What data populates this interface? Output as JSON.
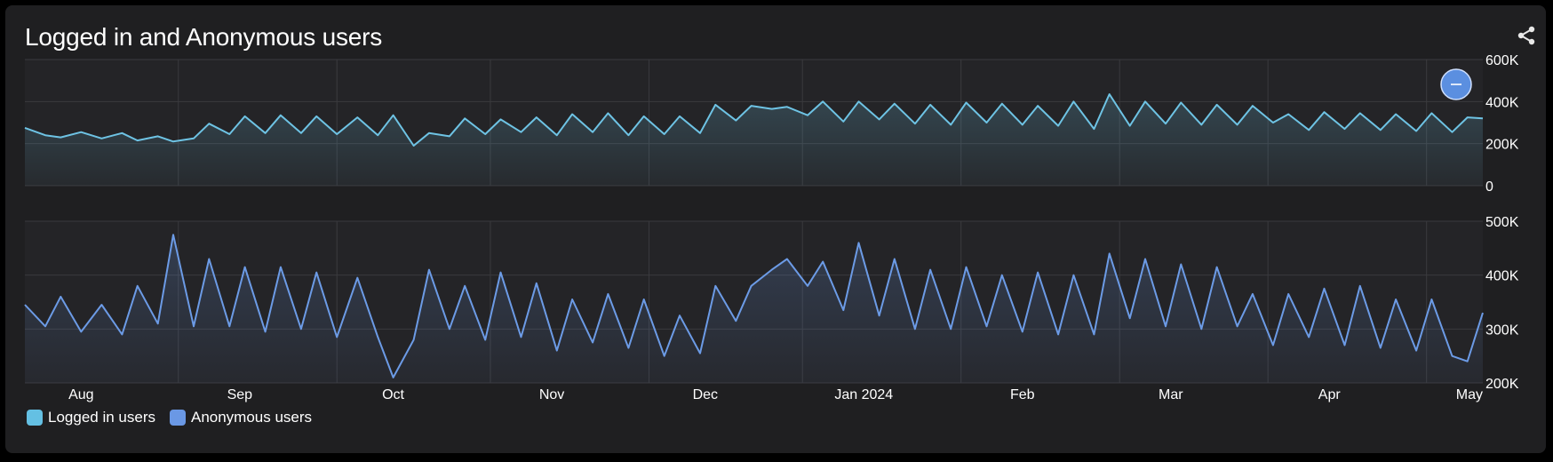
{
  "header": {
    "title": "Logged in and Anonymous users"
  },
  "icons": {
    "share": "share-icon",
    "reset_zoom": "minus-icon"
  },
  "colors": {
    "logged_in": "#6ec3e4",
    "anonymous": "#6c9be6",
    "background": "#1f1f21",
    "plot_bg": "#242427",
    "grid": "#3a3a3e"
  },
  "legend": [
    {
      "label": "Logged in users",
      "color": "#64c0e3"
    },
    {
      "label": "Anonymous users",
      "color": "#6a98e5"
    }
  ],
  "chart_data": [
    {
      "type": "area",
      "series_name": "Logged in users",
      "x_range": [
        "2023-07-21",
        "2024-05-01"
      ],
      "ylim": [
        0,
        600000
      ],
      "y_ticks": [
        "0",
        "200K",
        "400K",
        "600K"
      ],
      "x": [
        "2023-07-21",
        "2023-07-25",
        "2023-07-28",
        "2023-08-01",
        "2023-08-05",
        "2023-08-09",
        "2023-08-12",
        "2023-08-16",
        "2023-08-19",
        "2023-08-23",
        "2023-08-26",
        "2023-08-30",
        "2023-09-02",
        "2023-09-06",
        "2023-09-09",
        "2023-09-13",
        "2023-09-16",
        "2023-09-20",
        "2023-09-24",
        "2023-09-28",
        "2023-10-01",
        "2023-10-05",
        "2023-10-08",
        "2023-10-12",
        "2023-10-15",
        "2023-10-19",
        "2023-10-22",
        "2023-10-26",
        "2023-10-29",
        "2023-11-02",
        "2023-11-05",
        "2023-11-09",
        "2023-11-12",
        "2023-11-16",
        "2023-11-19",
        "2023-11-23",
        "2023-11-26",
        "2023-11-30",
        "2023-12-03",
        "2023-12-07",
        "2023-12-10",
        "2023-12-14",
        "2023-12-17",
        "2023-12-21",
        "2023-12-24",
        "2023-12-28",
        "2023-12-31",
        "2024-01-04",
        "2024-01-07",
        "2024-01-11",
        "2024-01-14",
        "2024-01-18",
        "2024-01-21",
        "2024-01-25",
        "2024-01-28",
        "2024-02-01",
        "2024-02-04",
        "2024-02-08",
        "2024-02-11",
        "2024-02-15",
        "2024-02-18",
        "2024-02-22",
        "2024-02-25",
        "2024-02-29",
        "2024-03-03",
        "2024-03-07",
        "2024-03-10",
        "2024-03-14",
        "2024-03-17",
        "2024-03-21",
        "2024-03-24",
        "2024-03-28",
        "2024-03-31",
        "2024-04-04",
        "2024-04-07",
        "2024-04-11",
        "2024-04-14",
        "2024-04-18",
        "2024-04-21",
        "2024-04-25",
        "2024-04-28",
        "2024-05-01"
      ],
      "values": [
        275000,
        240000,
        230000,
        255000,
        225000,
        250000,
        215000,
        235000,
        210000,
        225000,
        295000,
        245000,
        330000,
        250000,
        335000,
        250000,
        330000,
        245000,
        325000,
        240000,
        335000,
        190000,
        250000,
        235000,
        320000,
        245000,
        315000,
        255000,
        325000,
        240000,
        340000,
        255000,
        345000,
        240000,
        330000,
        245000,
        330000,
        250000,
        385000,
        310000,
        380000,
        365000,
        375000,
        335000,
        400000,
        305000,
        400000,
        315000,
        390000,
        295000,
        385000,
        290000,
        395000,
        300000,
        390000,
        290000,
        380000,
        285000,
        400000,
        270000,
        435000,
        285000,
        400000,
        295000,
        395000,
        290000,
        385000,
        290000,
        380000,
        300000,
        340000,
        265000,
        350000,
        270000,
        345000,
        265000,
        340000,
        260000,
        345000,
        255000,
        325000,
        320000
      ]
    },
    {
      "type": "area",
      "series_name": "Anonymous users",
      "x_range": [
        "2023-07-21",
        "2024-05-01"
      ],
      "ylim": [
        200000,
        500000
      ],
      "y_ticks": [
        "200K",
        "300K",
        "400K",
        "500K"
      ],
      "x_ticks": [
        "Aug",
        "Sep",
        "Oct",
        "Nov",
        "Dec",
        "Jan 2024",
        "Feb",
        "Mar",
        "Apr",
        "May"
      ],
      "x": [
        "2023-07-21",
        "2023-07-25",
        "2023-07-28",
        "2023-08-01",
        "2023-08-05",
        "2023-08-09",
        "2023-08-12",
        "2023-08-16",
        "2023-08-19",
        "2023-08-23",
        "2023-08-26",
        "2023-08-30",
        "2023-09-02",
        "2023-09-06",
        "2023-09-09",
        "2023-09-13",
        "2023-09-16",
        "2023-09-20",
        "2023-09-24",
        "2023-09-28",
        "2023-10-01",
        "2023-10-05",
        "2023-10-08",
        "2023-10-12",
        "2023-10-15",
        "2023-10-19",
        "2023-10-22",
        "2023-10-26",
        "2023-10-29",
        "2023-11-02",
        "2023-11-05",
        "2023-11-09",
        "2023-11-12",
        "2023-11-16",
        "2023-11-19",
        "2023-11-23",
        "2023-11-26",
        "2023-11-30",
        "2023-12-03",
        "2023-12-07",
        "2023-12-10",
        "2023-12-14",
        "2023-12-17",
        "2023-12-21",
        "2023-12-24",
        "2023-12-28",
        "2023-12-31",
        "2024-01-04",
        "2024-01-07",
        "2024-01-11",
        "2024-01-14",
        "2024-01-18",
        "2024-01-21",
        "2024-01-25",
        "2024-01-28",
        "2024-02-01",
        "2024-02-04",
        "2024-02-08",
        "2024-02-11",
        "2024-02-15",
        "2024-02-18",
        "2024-02-22",
        "2024-02-25",
        "2024-02-29",
        "2024-03-03",
        "2024-03-07",
        "2024-03-10",
        "2024-03-14",
        "2024-03-17",
        "2024-03-21",
        "2024-03-24",
        "2024-03-28",
        "2024-03-31",
        "2024-04-04",
        "2024-04-07",
        "2024-04-11",
        "2024-04-14",
        "2024-04-18",
        "2024-04-21",
        "2024-04-25",
        "2024-04-28",
        "2024-05-01"
      ],
      "values": [
        345000,
        305000,
        360000,
        295000,
        345000,
        290000,
        380000,
        310000,
        475000,
        305000,
        430000,
        305000,
        415000,
        295000,
        415000,
        300000,
        405000,
        285000,
        395000,
        285000,
        210000,
        280000,
        410000,
        300000,
        380000,
        280000,
        405000,
        285000,
        385000,
        260000,
        355000,
        275000,
        365000,
        265000,
        355000,
        250000,
        325000,
        255000,
        380000,
        315000,
        380000,
        410000,
        430000,
        380000,
        425000,
        335000,
        460000,
        325000,
        430000,
        300000,
        410000,
        300000,
        415000,
        305000,
        400000,
        295000,
        405000,
        290000,
        400000,
        290000,
        440000,
        320000,
        430000,
        305000,
        420000,
        300000,
        415000,
        305000,
        365000,
        270000,
        365000,
        285000,
        375000,
        270000,
        380000,
        265000,
        355000,
        260000,
        355000,
        250000,
        240000,
        330000
      ]
    }
  ]
}
